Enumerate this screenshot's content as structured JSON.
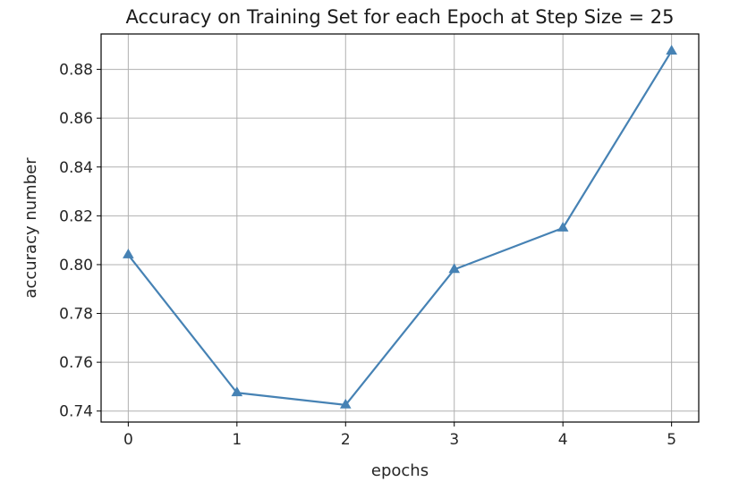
{
  "chart_data": {
    "type": "line",
    "title": "Accuracy on Training Set for each Epoch at Step Size = 25",
    "xlabel": "epochs",
    "ylabel": "accuracy number",
    "x": [
      0,
      1,
      2,
      3,
      4,
      5
    ],
    "series": [
      {
        "values": [
          0.804,
          0.7475,
          0.7425,
          0.798,
          0.815,
          0.8875
        ],
        "color": "#4682b4",
        "marker": "triangle-up"
      }
    ],
    "xticks": [
      "0",
      "1",
      "2",
      "3",
      "4",
      "5"
    ],
    "yticks": [
      "0.74",
      "0.76",
      "0.78",
      "0.80",
      "0.82",
      "0.84",
      "0.86",
      "0.88"
    ],
    "xlim": [
      -0.25,
      5.25
    ],
    "ylim": [
      0.7355,
      0.8945
    ],
    "grid": true,
    "legend": false
  }
}
